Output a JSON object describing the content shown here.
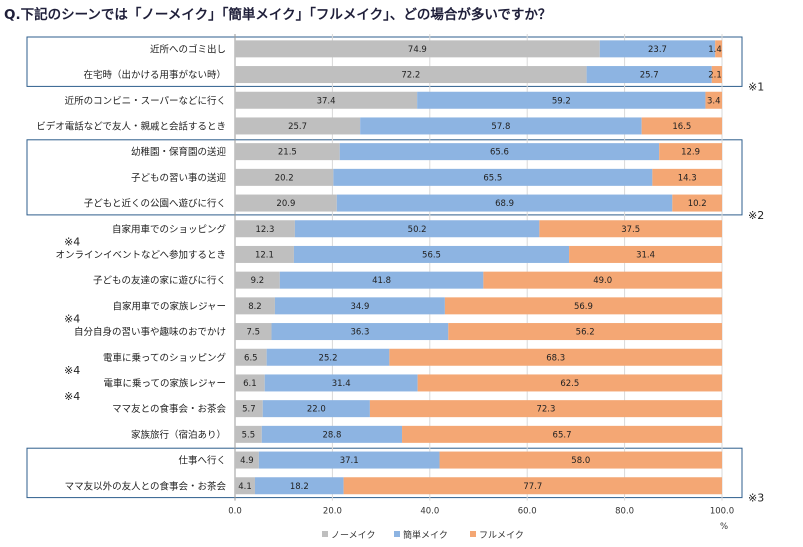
{
  "chart_data": {
    "type": "bar",
    "stacked": true,
    "orientation": "horizontal",
    "title": "Q.下記のシーンでは「ノーメイク」「簡単メイク」「フルメイク」、どの場合が多いですか？",
    "unit": "%",
    "xlim": [
      0,
      100
    ],
    "xticks": [
      "0.0",
      "20.0",
      "40.0",
      "60.0",
      "80.0",
      "100.0"
    ],
    "categories": [
      "近所へのゴミ出し",
      "在宅時（出かける用事がない時）",
      "近所のコンビニ・スーパーなどに行く",
      "ビデオ電話などで友人・親戚と会話するとき",
      "幼稚園・保育園の送迎",
      "子どもの習い事の送迎",
      "子どもと近くの公園へ遊びに行く",
      "自家用車でのショッピング",
      "オンラインイベントなどへ参加するとき",
      "子どもの友達の家に遊びに行く",
      "自家用車での家族レジャー",
      "自分自身の習い事や趣味のおでかけ",
      "電車に乗ってのショッピング",
      "電車に乗っての家族レジャー",
      "ママ友との食事会・お茶会",
      "家族旅行（宿泊あり）",
      "仕事へ行く",
      "ママ友以外の友人との食事会・お茶会"
    ],
    "series": [
      {
        "name": "ノーメイク",
        "color": "#bfbfbf",
        "values": [
          74.9,
          72.2,
          37.4,
          25.7,
          21.5,
          20.2,
          20.9,
          12.3,
          12.1,
          9.2,
          8.2,
          7.5,
          6.5,
          6.1,
          5.7,
          5.5,
          4.9,
          4.1
        ]
      },
      {
        "name": "簡単メイク",
        "color": "#8db4e2",
        "values": [
          23.7,
          25.7,
          59.2,
          57.8,
          65.6,
          65.5,
          68.9,
          50.2,
          56.5,
          41.8,
          34.9,
          36.3,
          25.2,
          31.4,
          22.0,
          28.8,
          37.1,
          18.2
        ]
      },
      {
        "name": "フルメイク",
        "color": "#f4a774",
        "values": [
          1.4,
          2.1,
          3.4,
          16.5,
          12.9,
          14.3,
          10.2,
          37.5,
          31.4,
          49.0,
          56.9,
          56.2,
          68.3,
          62.5,
          72.3,
          65.7,
          58.0,
          77.7
        ]
      }
    ],
    "value_labels": [
      [
        "74.9",
        "23.7",
        "1.4"
      ],
      [
        "72.2",
        "25.7",
        "2.1"
      ],
      [
        "37.4",
        "59.2",
        "3.4"
      ],
      [
        "25.7",
        "57.8",
        "16.5"
      ],
      [
        "21.5",
        "65.6",
        "12.9"
      ],
      [
        "20.2",
        "65.5",
        "14.3"
      ],
      [
        "20.9",
        "68.9",
        "10.2"
      ],
      [
        "12.3",
        "50.2",
        "37.5"
      ],
      [
        "12.1",
        "56.5",
        "31.4"
      ],
      [
        "9.2",
        "41.8",
        "49.0"
      ],
      [
        "8.2",
        "34.9",
        "56.9"
      ],
      [
        "7.5",
        "36.3",
        "56.2"
      ],
      [
        "6.5",
        "25.2",
        "68.3"
      ],
      [
        "6.1",
        "31.4",
        "62.5"
      ],
      [
        "5.7",
        "22.0",
        "72.3"
      ],
      [
        "5.5",
        "28.8",
        "65.7"
      ],
      [
        "4.9",
        "37.1",
        "58.0"
      ],
      [
        "4.1",
        "18.2",
        "77.7"
      ]
    ],
    "groups": [
      {
        "rows": [
          0,
          1
        ],
        "note": "※1"
      },
      {
        "rows": [
          4,
          5,
          6
        ],
        "note": "※2"
      },
      {
        "rows": [
          16,
          17
        ],
        "note": "※3"
      }
    ],
    "marked_rows": {
      "rows": [
        7,
        10,
        12,
        13
      ],
      "note": "※4"
    }
  }
}
